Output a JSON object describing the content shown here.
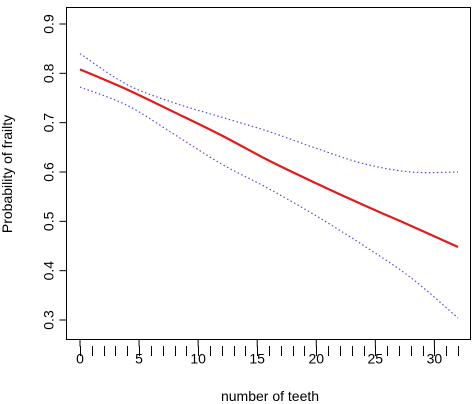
{
  "chart_data": {
    "type": "line",
    "title": "",
    "xlabel": "number of teeth",
    "ylabel": "Probability of frailty",
    "xlim": [
      0,
      32
    ],
    "ylim": [
      0.3,
      0.9
    ],
    "grid": false,
    "x_ticks": [
      0,
      5,
      10,
      15,
      20,
      25,
      30
    ],
    "y_ticks": [
      0.3,
      0.4,
      0.5,
      0.6,
      0.7,
      0.8,
      0.9
    ],
    "x_tick_labels": [
      "0",
      "5",
      "10",
      "15",
      "20",
      "25",
      "30"
    ],
    "y_tick_labels": [
      "0.3",
      "0.4",
      "0.5",
      "0.6",
      "0.7",
      "0.8",
      "0.9"
    ],
    "rug_x": [
      0,
      1,
      2,
      3,
      4,
      5,
      6,
      7,
      8,
      9,
      10,
      11,
      12,
      13,
      14,
      15,
      16,
      17,
      18,
      19,
      20,
      21,
      22,
      23,
      24,
      25,
      26,
      27,
      28,
      29,
      30,
      31,
      32
    ],
    "series": [
      {
        "role": "estimate",
        "color": "#e31a1c",
        "style": "solid",
        "x": [
          0,
          4,
          8,
          12,
          16,
          20,
          24,
          28,
          32
        ],
        "y": [
          0.808,
          0.767,
          0.721,
          0.674,
          0.623,
          0.577,
          0.533,
          0.491,
          0.448
        ]
      },
      {
        "role": "upper-ci",
        "color": "#4a4af0",
        "style": "dotted",
        "x": [
          0,
          4,
          8,
          12,
          16,
          20,
          24,
          28,
          32
        ],
        "y": [
          0.84,
          0.777,
          0.74,
          0.711,
          0.682,
          0.648,
          0.617,
          0.6,
          0.6
        ]
      },
      {
        "role": "lower-ci",
        "color": "#4a4af0",
        "style": "dotted",
        "x": [
          0,
          4,
          8,
          12,
          16,
          20,
          24,
          28,
          32
        ],
        "y": [
          0.772,
          0.735,
          0.676,
          0.616,
          0.566,
          0.511,
          0.451,
          0.386,
          0.304
        ]
      }
    ]
  }
}
